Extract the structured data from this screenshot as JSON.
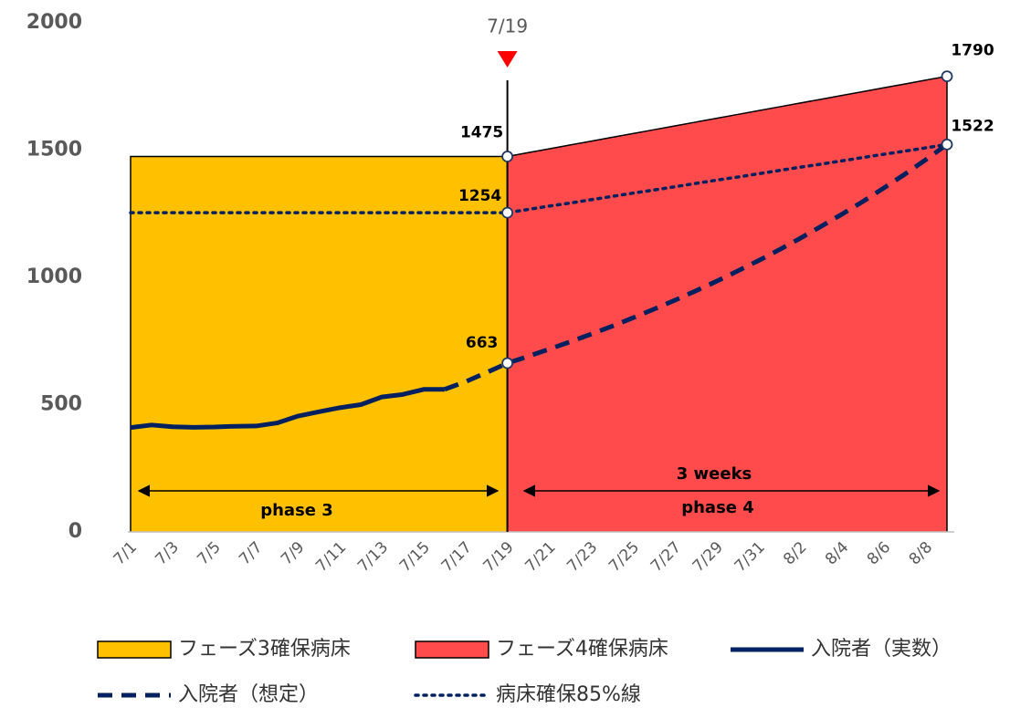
{
  "chart_data": {
    "type": "line",
    "categories": [
      "7/1",
      null,
      "7/3",
      null,
      "7/5",
      null,
      "7/7",
      null,
      "7/9",
      null,
      "7/11",
      null,
      "7/13",
      null,
      "7/15",
      null,
      "7/17",
      null,
      "7/19",
      null,
      "7/21",
      null,
      "7/23",
      null,
      "7/25",
      null,
      "7/27",
      null,
      "7/29",
      null,
      "7/31",
      null,
      "8/2",
      null,
      "8/4",
      null,
      "8/6",
      null,
      "8/8",
      null
    ],
    "series": [
      {
        "name": "フェーズ3確保病床",
        "kind": "area",
        "color": "#ffc000",
        "values": [
          1475,
          1475,
          1475,
          1475,
          1475,
          1475,
          1475,
          1475,
          1475,
          1475,
          1475,
          1475,
          1475,
          1475,
          1475,
          1475,
          1475,
          1475,
          1475,
          null,
          null,
          null,
          null,
          null,
          null,
          null,
          null,
          null,
          null,
          null,
          null,
          null,
          null,
          null,
          null,
          null,
          null,
          null,
          null,
          null
        ]
      },
      {
        "name": "フェーズ4確保病床",
        "kind": "area",
        "color": "#ff4b4b",
        "values": [
          null,
          null,
          null,
          null,
          null,
          null,
          null,
          null,
          null,
          null,
          null,
          null,
          null,
          null,
          null,
          null,
          null,
          null,
          1475,
          1490,
          1505,
          1520,
          1535,
          1550,
          1565,
          1580,
          1595,
          1610,
          1625,
          1640,
          1655,
          1670,
          1685,
          1700,
          1715,
          1730,
          1745,
          1760,
          1775,
          1790
        ]
      },
      {
        "name": "入院者（実数）",
        "kind": "solid",
        "color": "#002060",
        "values": [
          410,
          420,
          413,
          411,
          412,
          415,
          416,
          428,
          455,
          472,
          488,
          500,
          530,
          540,
          560,
          560,
          null,
          null,
          null,
          null,
          null,
          null,
          null,
          null,
          null,
          null,
          null,
          null,
          null,
          null,
          null,
          null,
          null,
          null,
          null,
          null,
          null,
          null,
          null,
          null
        ]
      },
      {
        "name": "入院者（想定）",
        "kind": "dashed",
        "color": "#002060",
        "values": [
          null,
          null,
          null,
          null,
          null,
          null,
          null,
          null,
          null,
          null,
          null,
          null,
          null,
          null,
          null,
          560,
          590,
          626,
          663,
          690,
          718,
          747,
          777,
          808,
          841,
          875,
          910,
          947,
          985,
          1025,
          1066,
          1109,
          1154,
          1201,
          1249,
          1299,
          1352,
          1406,
          1463,
          1522
        ]
      },
      {
        "name": "病床確保85%線",
        "kind": "dotted",
        "color": "#002060",
        "values": [
          1254,
          1254,
          1254,
          1254,
          1254,
          1254,
          1254,
          1254,
          1254,
          1254,
          1254,
          1254,
          1254,
          1254,
          1254,
          1254,
          1254,
          1254,
          1254,
          1267,
          1280,
          1292,
          1305,
          1318,
          1331,
          1343,
          1356,
          1369,
          1382,
          1394,
          1407,
          1420,
          1433,
          1445,
          1458,
          1471,
          1484,
          1496,
          1509,
          1522
        ]
      }
    ],
    "ylim": [
      0,
      2000
    ],
    "yticks": [
      0,
      500,
      1000,
      1500,
      2000
    ],
    "grid": false,
    "annotations": {
      "marker": "7/19",
      "weeks": "3 weeks",
      "phase3": "phase 3",
      "phase4": "phase 4"
    }
  }
}
